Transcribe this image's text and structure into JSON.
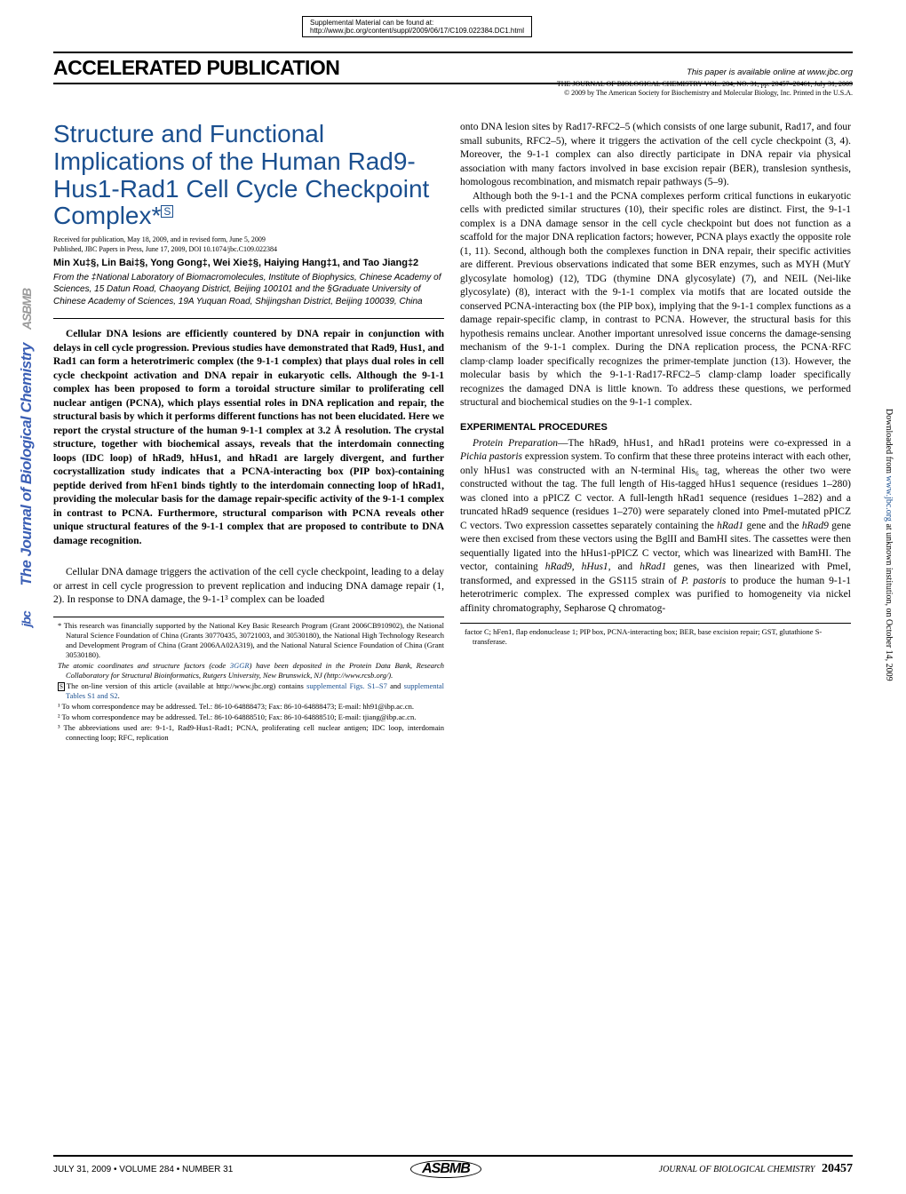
{
  "supplemental": {
    "line1": "Supplemental Material can be found at:",
    "line2": "http://www.jbc.org/content/suppl/2009/06/17/C109.022384.DC1.html"
  },
  "accel": {
    "title": "ACCELERATED PUBLICATION",
    "right": "This paper is available online at www.jbc.org"
  },
  "journal_info": {
    "line1": "THE JOURNAL OF BIOLOGICAL CHEMISTRY VOL. 284, NO. 31, pp. 20457–20461, July 31, 2009",
    "line2": "© 2009 by The American Society for Biochemistry and Molecular Biology, Inc.    Printed in the U.S.A."
  },
  "article": {
    "title": "Structure and Functional Implications of the Human Rad9-Hus1-Rad1 Cell Cycle Checkpoint Complex*",
    "received": "Received for publication, May 18, 2009, and in revised form, June 5, 2009",
    "published": "Published, JBC Papers in Press, June 17, 2009, DOI 10.1074/jbc.C109.022384",
    "authors": "Min Xu‡§, Lin Bai‡§, Yong Gong‡, Wei Xie‡§, Haiying Hang‡1, and Tao Jiang‡2",
    "affil": "From the ‡National Laboratory of Biomacromolecules, Institute of Biophysics, Chinese Academy of Sciences, 15 Datun Road, Chaoyang District, Beijing 100101 and the §Graduate University of Chinese Academy of Sciences, 19A Yuquan Road, Shijingshan District, Beijing 100039, China"
  },
  "abstract": "Cellular DNA lesions are efficiently countered by DNA repair in conjunction with delays in cell cycle progression. Previous studies have demonstrated that Rad9, Hus1, and Rad1 can form a heterotrimeric complex (the 9-1-1 complex) that plays dual roles in cell cycle checkpoint activation and DNA repair in eukaryotic cells. Although the 9-1-1 complex has been proposed to form a toroidal structure similar to proliferating cell nuclear antigen (PCNA), which plays essential roles in DNA replication and repair, the structural basis by which it performs different functions has not been elucidated. Here we report the crystal structure of the human 9-1-1 complex at 3.2 Å resolution. The crystal structure, together with biochemical assays, reveals that the interdomain connecting loops (IDC loop) of hRad9, hHus1, and hRad1 are largely divergent, and further cocrystallization study indicates that a PCNA-interacting box (PIP box)-containing peptide derived from hFen1 binds tightly to the interdomain connecting loop of hRad1, providing the molecular basis for the damage repair-specific activity of the 9-1-1 complex in contrast to PCNA. Furthermore, structural comparison with PCNA reveals other unique structural features of the 9-1-1 complex that are proposed to contribute to DNA damage recognition.",
  "intro": "Cellular DNA damage triggers the activation of the cell cycle checkpoint, leading to a delay or arrest in cell cycle progression to prevent replication and inducing DNA damage repair (1, 2). In response to DNA damage, the 9-1-1³ complex can be loaded",
  "right_col": {
    "p1": "onto DNA lesion sites by Rad17-RFC2–5 (which consists of one large subunit, Rad17, and four small subunits, RFC2–5), where it triggers the activation of the cell cycle checkpoint (3, 4). Moreover, the 9-1-1 complex can also directly participate in DNA repair via physical association with many factors involved in base excision repair (BER), translesion synthesis, homologous recombination, and mismatch repair pathways (5–9).",
    "p2": "Although both the 9-1-1 and the PCNA complexes perform critical functions in eukaryotic cells with predicted similar structures (10), their specific roles are distinct. First, the 9-1-1 complex is a DNA damage sensor in the cell cycle checkpoint but does not function as a scaffold for the major DNA replication factors; however, PCNA plays exactly the opposite role (1, 11). Second, although both the complexes function in DNA repair, their specific activities are different. Previous observations indicated that some BER enzymes, such as MYH (MutY glycosylate homolog) (12), TDG (thymine DNA glycosylate) (7), and NEIL (Nei-like glycosylate) (8), interact with the 9-1-1 complex via motifs that are located outside the conserved PCNA-interacting box (the PIP box), implying that the 9-1-1 complex functions as a damage repair-specific clamp, in contrast to PCNA. However, the structural basis for this hypothesis remains unclear. Another important unresolved issue concerns the damage-sensing mechanism of the 9-1-1 complex. During the DNA replication process, the PCNA·RFC clamp·clamp loader specifically recognizes the primer-template junction (13). However, the molecular basis by which the 9-1-1·Rad17-RFC2–5 clamp·clamp loader specifically recognizes the damaged DNA is little known. To address these questions, we performed structural and biochemical studies on the 9-1-1 complex.",
    "heading": "EXPERIMENTAL PROCEDURES",
    "p3": "Protein Preparation—The hRad9, hHus1, and hRad1 proteins were co-expressed in a Pichia pastoris expression system. To confirm that these three proteins interact with each other, only hHus1 was constructed with an N-terminal His₆ tag, whereas the other two were constructed without the tag. The full length of His-tagged hHus1 sequence (residues 1–280) was cloned into a pPICZ C vector. A full-length hRad1 sequence (residues 1–282) and a truncated hRad9 sequence (residues 1–270) were separately cloned into PmeI-mutated pPICZ C vectors. Two expression cassettes separately containing the hRad1 gene and the hRad9 gene were then excised from these vectors using the BglII and BamHI sites. The cassettes were then sequentially ligated into the hHus1-pPICZ C vector, which was linearized with BamHI. The vector, containing hRad9, hHus1, and hRad1 genes, was then linearized with PmeI, transformed, and expressed in the GS115 strain of P. pastoris to produce the human 9-1-1 heterotrimeric complex. The expressed complex was purified to homogeneity via nickel affinity chromatography, Sepharose Q chromatog-"
  },
  "footnotes": {
    "star": "* This research was financially supported by the National Key Basic Research Program (Grant 2006CB910902), the National Natural Science Foundation of China (Grants 30770435, 30721003, and 30530180), the National High Technology Research and Development Program of China (Grant 2006AA02A319), and the National Natural Science Foundation of China (Grant 30530180).",
    "atomic": "The atomic coordinates and structure factors (code 3GGR) have been deposited in the Protein Data Bank, Research Collaboratory for Structural Bioinformatics, Rutgers University, New Brunswick, NJ (http://www.rcsb.org/).",
    "online": "The on-line version of this article (available at http://www.jbc.org) contains supplemental Figs. S1–S7 and supplemental Tables S1 and S2.",
    "corr1": "¹ To whom correspondence may be addressed. Tel.: 86-10-64888473; Fax: 86-10-64888473; E-mail: hh91@ibp.ac.cn.",
    "corr2": "² To whom correspondence may be addressed. Tel.: 86-10-64888510; Fax: 86-10-64888510; E-mail: tjiang@ibp.ac.cn.",
    "abbrev": "³ The abbreviations used are: 9-1-1, Rad9-Hus1-Rad1; PCNA, proliferating cell nuclear antigen; IDC loop, interdomain connecting loop; RFC, replication",
    "abbrev_right": "factor C; hFen1, flap endonuclease 1; PIP box, PCNA-interacting box; BER, base excision repair; GST, glutathione S-transferase."
  },
  "footer": {
    "left": "JULY 31, 2009 • VOLUME 284 • NUMBER 31",
    "center": "ASBMB",
    "right": "JOURNAL OF BIOLOGICAL CHEMISTRY",
    "page": "20457"
  },
  "sidebar": {
    "logo1": "ASBMB",
    "text": "The Journal of Biological Chemistry",
    "logo2": "jbc"
  },
  "right_sidebar": "Downloaded from www.jbc.org at unknown institution, on October 14, 2009"
}
